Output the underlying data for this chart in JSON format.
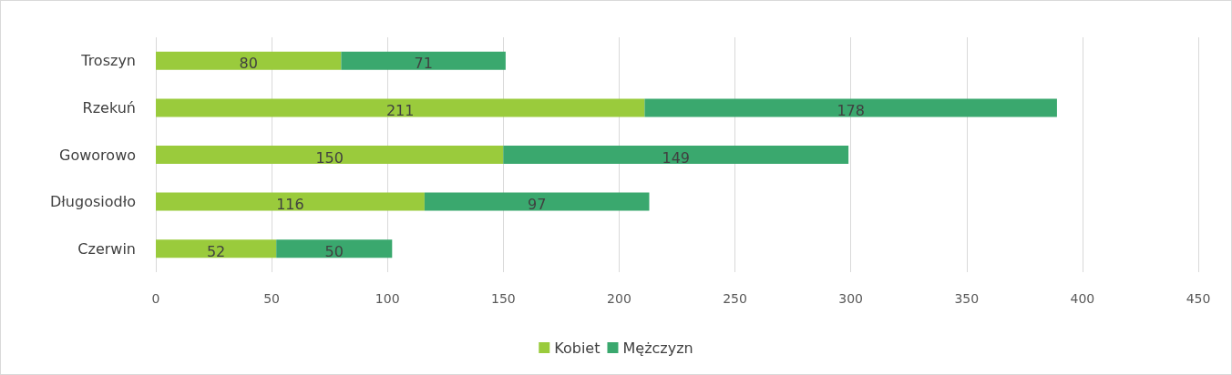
{
  "chart_data": {
    "type": "bar",
    "orientation": "horizontal",
    "stacked": true,
    "categories": [
      "Troszyn",
      "Rzekuń",
      "Goworowo",
      "Długosiodło",
      "Czerwin"
    ],
    "series": [
      {
        "name": "Kobiet",
        "color": "#9acb3c",
        "values": [
          80,
          211,
          150,
          116,
          52
        ]
      },
      {
        "name": "Mężczyzn",
        "color": "#3aa86e",
        "values": [
          71,
          178,
          149,
          97,
          50
        ]
      }
    ],
    "xlim": [
      0,
      450
    ],
    "xticks": [
      0,
      50,
      100,
      150,
      200,
      250,
      300,
      350,
      400,
      450
    ],
    "grid": "x",
    "legend": "bottom",
    "data_labels": true
  }
}
